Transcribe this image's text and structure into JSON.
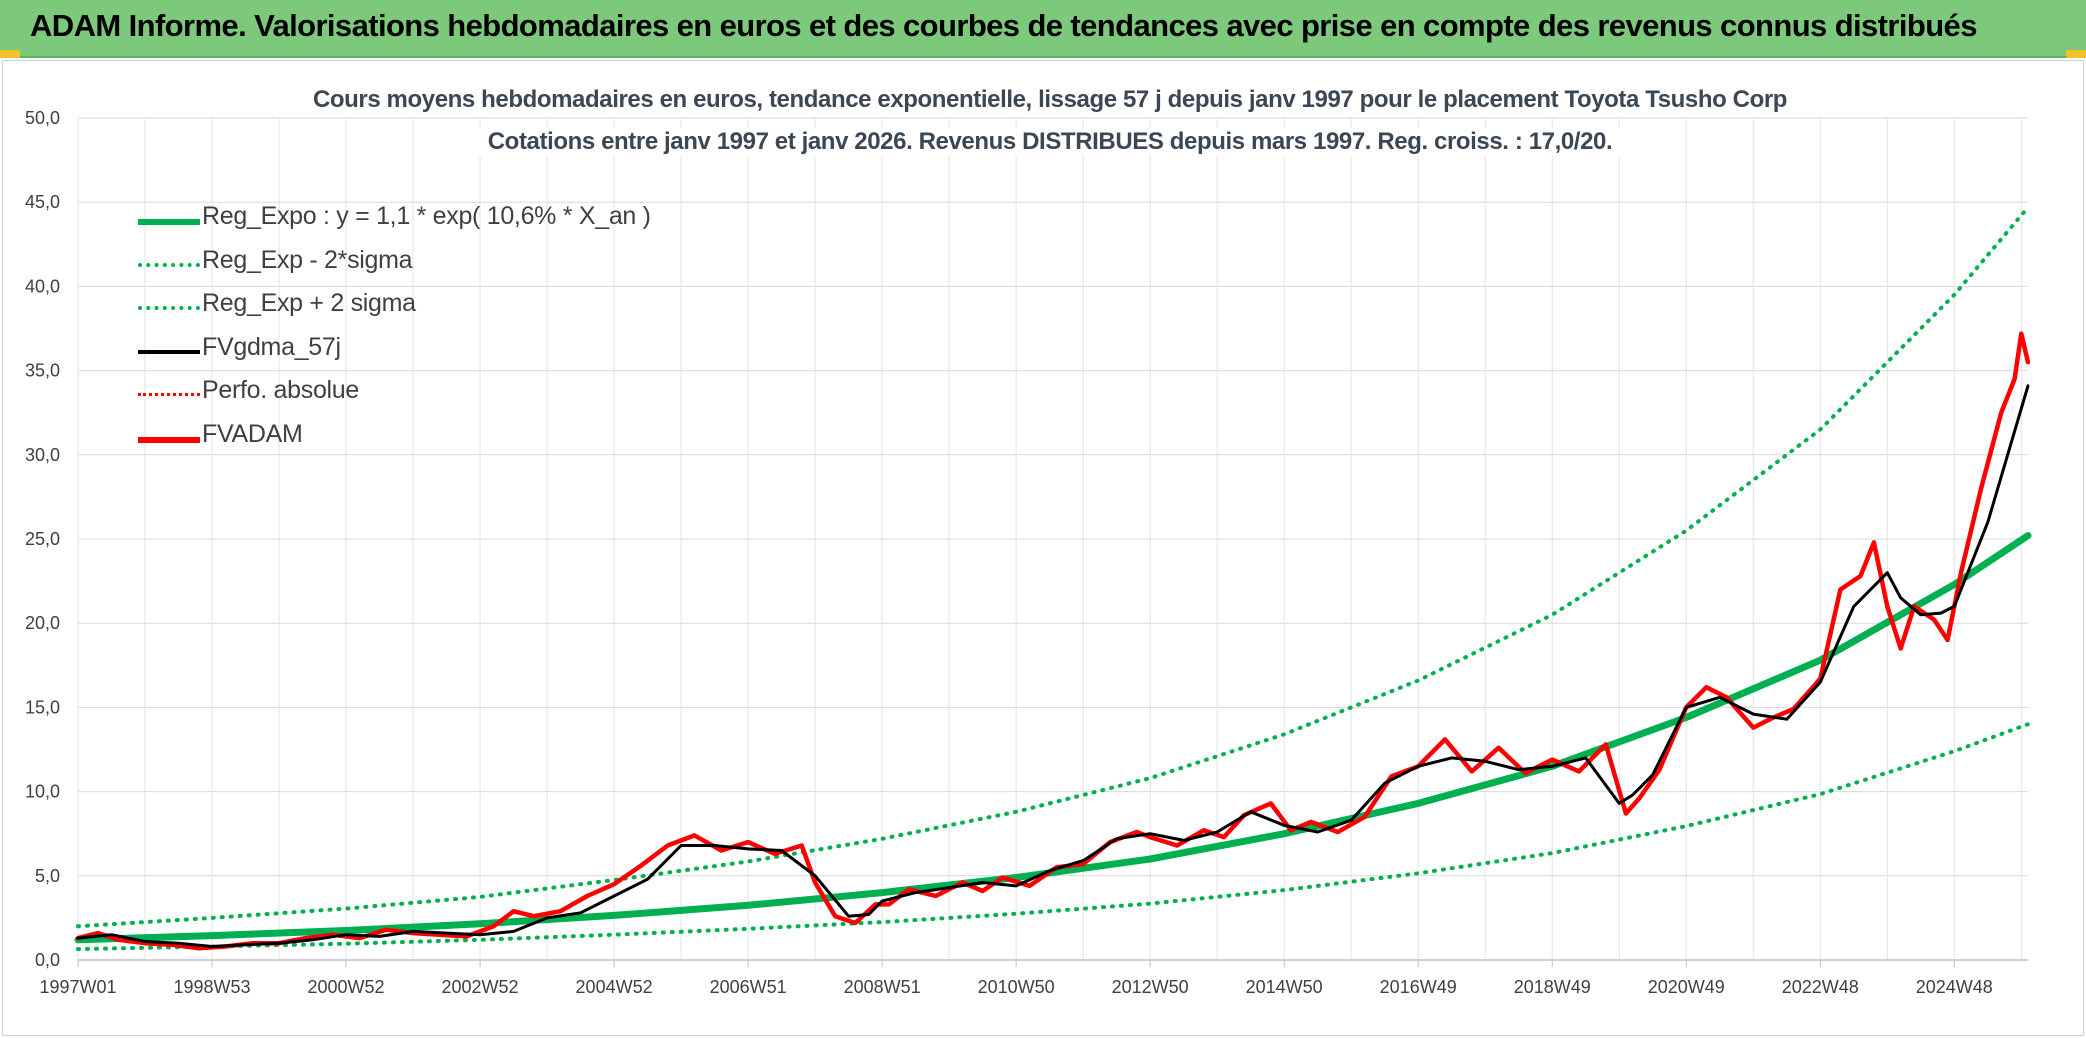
{
  "banner": {
    "title": "ADAM Informe. Valorisations hebdomadaires en euros et des courbes de tendances avec prise en compte des revenus connus distribués"
  },
  "colors": {
    "banner_bg": "#7dc97b",
    "reg_expo": "#00b050",
    "fvgdma": "#000000",
    "fvadam": "#ff0000",
    "perfo": "#ff0000"
  },
  "chart_data": {
    "type": "line",
    "title": "Cours moyens hebdomadaires en euros, tendance exponentielle, lissage 57 j depuis janv 1997 pour le placement Toyota Tsusho Corp",
    "subtitle": "Cotations entre janv 1997 et janv 2026. Revenus DISTRIBUES depuis mars 1997. Reg. croiss. : 17,0/20.",
    "xlabel": "",
    "ylabel": "",
    "x_ticks": [
      "1997W01",
      "1998W53",
      "2000W52",
      "2002W52",
      "2004W52",
      "2006W51",
      "2008W51",
      "2010W50",
      "2012W50",
      "2014W50",
      "2016W49",
      "2018W49",
      "2020W49",
      "2022W48",
      "2024W48"
    ],
    "x_range": [
      1997.0,
      2026.1
    ],
    "ylim": [
      0,
      50
    ],
    "y_ticks": [
      "0,0",
      "5,0",
      "10,0",
      "15,0",
      "20,0",
      "25,0",
      "30,0",
      "35,0",
      "40,0",
      "45,0",
      "50,0"
    ],
    "grid": true,
    "legend_position": "top-left",
    "legend": [
      {
        "label": "Reg_Expo : y = 1,1 * exp( 10,6% *  X_an )",
        "color": "#00b050",
        "style": "solid",
        "width": 6
      },
      {
        "label": "Reg_Exp - 2*sigma",
        "color": "#00b050",
        "style": "dotted",
        "width": 3.5
      },
      {
        "label": "Reg_Exp + 2 sigma",
        "color": "#00b050",
        "style": "dotted",
        "width": 3.5
      },
      {
        "label": "FVgdma_57j",
        "color": "#000000",
        "style": "solid",
        "width": 3
      },
      {
        "label": "Perfo. absolue",
        "color": "#ff0000",
        "style": "dotted",
        "width": 2
      },
      {
        "label": "FVADAM",
        "color": "#ff0000",
        "style": "solid",
        "width": 5
      }
    ],
    "series": [
      {
        "name": "Reg_Expo : y = 1,1 * exp( 10,6% *  X_an )",
        "x": [
          1997.0,
          1999.0,
          2001.0,
          2003.0,
          2005.0,
          2007.0,
          2009.0,
          2011.0,
          2013.0,
          2015.0,
          2017.0,
          2019.0,
          2021.0,
          2023.0,
          2025.0,
          2026.1
        ],
        "y": [
          1.2,
          1.45,
          1.75,
          2.15,
          2.65,
          3.25,
          4.0,
          4.9,
          6.0,
          7.5,
          9.3,
          11.5,
          14.4,
          17.8,
          22.3,
          25.2
        ]
      },
      {
        "name": "Reg_Exp - 2*sigma",
        "x": [
          1997.0,
          1999.0,
          2001.0,
          2003.0,
          2005.0,
          2007.0,
          2009.0,
          2011.0,
          2013.0,
          2015.0,
          2017.0,
          2019.0,
          2021.0,
          2023.0,
          2025.0,
          2026.1
        ],
        "y": [
          0.65,
          0.8,
          0.97,
          1.2,
          1.5,
          1.85,
          2.25,
          2.75,
          3.35,
          4.15,
          5.15,
          6.35,
          7.95,
          9.85,
          12.4,
          14.0
        ]
      },
      {
        "name": "Reg_Exp + 2 sigma",
        "x": [
          1997.0,
          1999.0,
          2001.0,
          2003.0,
          2005.0,
          2007.0,
          2009.0,
          2011.0,
          2013.0,
          2015.0,
          2017.0,
          2019.0,
          2021.0,
          2023.0,
          2025.0,
          2026.1
        ],
        "y": [
          2.0,
          2.5,
          3.05,
          3.75,
          4.75,
          5.85,
          7.2,
          8.8,
          10.8,
          13.4,
          16.6,
          20.5,
          25.5,
          31.5,
          39.5,
          44.7
        ]
      },
      {
        "name": "FVgdma_57j",
        "x": [
          1997.0,
          1997.5,
          1998.0,
          1998.5,
          1999.0,
          1999.5,
          2000.0,
          2000.5,
          2001.0,
          2001.5,
          2002.0,
          2002.5,
          2003.0,
          2003.5,
          2004.0,
          2004.5,
          2005.0,
          2005.5,
          2006.0,
          2006.5,
          2007.0,
          2007.5,
          2008.0,
          2008.5,
          2008.8,
          2009.0,
          2009.5,
          2010.0,
          2010.5,
          2011.0,
          2011.5,
          2012.0,
          2012.5,
          2013.0,
          2013.5,
          2014.0,
          2014.5,
          2015.0,
          2015.5,
          2016.0,
          2016.5,
          2017.0,
          2017.5,
          2018.0,
          2018.5,
          2019.0,
          2019.5,
          2020.0,
          2020.2,
          2020.5,
          2021.0,
          2021.5,
          2022.0,
          2022.5,
          2023.0,
          2023.5,
          2024.0,
          2024.2,
          2024.5,
          2024.8,
          2025.0,
          2025.5,
          2026.1
        ],
        "y": [
          1.3,
          1.5,
          1.1,
          1.0,
          0.8,
          0.9,
          1.0,
          1.2,
          1.5,
          1.4,
          1.7,
          1.6,
          1.5,
          1.7,
          2.5,
          2.8,
          3.8,
          4.8,
          6.8,
          6.8,
          6.6,
          6.5,
          5.0,
          2.6,
          2.7,
          3.5,
          4.0,
          4.3,
          4.6,
          4.4,
          5.3,
          5.9,
          7.2,
          7.5,
          7.1,
          7.6,
          8.8,
          8.0,
          7.6,
          8.3,
          10.5,
          11.5,
          12.0,
          11.8,
          11.3,
          11.5,
          12.0,
          9.3,
          9.8,
          11.0,
          15.0,
          15.6,
          14.6,
          14.3,
          16.5,
          21.0,
          23.0,
          21.5,
          20.5,
          20.6,
          21.0,
          26.0,
          34.1
        ]
      },
      {
        "name": "FVADAM",
        "x": [
          1997.0,
          1997.3,
          1997.6,
          1998.0,
          1998.4,
          1998.8,
          1999.2,
          1999.6,
          2000.0,
          2000.4,
          2000.8,
          2001.2,
          2001.6,
          2002.0,
          2002.4,
          2002.8,
          2003.2,
          2003.5,
          2003.8,
          2004.2,
          2004.6,
          2005.0,
          2005.4,
          2005.8,
          2006.2,
          2006.6,
          2007.0,
          2007.4,
          2007.8,
          2008.0,
          2008.3,
          2008.6,
          2008.9,
          2009.1,
          2009.4,
          2009.8,
          2010.2,
          2010.5,
          2010.8,
          2011.2,
          2011.6,
          2012.0,
          2012.4,
          2012.8,
          2013.0,
          2013.4,
          2013.8,
          2014.1,
          2014.4,
          2014.8,
          2015.1,
          2015.4,
          2015.8,
          2016.2,
          2016.6,
          2017.0,
          2017.4,
          2017.8,
          2018.2,
          2018.6,
          2019.0,
          2019.4,
          2019.8,
          2020.1,
          2020.3,
          2020.6,
          2021.0,
          2021.3,
          2021.6,
          2022.0,
          2022.3,
          2022.6,
          2023.0,
          2023.3,
          2023.6,
          2023.8,
          2024.0,
          2024.2,
          2024.4,
          2024.7,
          2024.9,
          2025.1,
          2025.4,
          2025.7,
          2025.9,
          2026.0,
          2026.1
        ],
        "y": [
          1.3,
          1.6,
          1.2,
          1.0,
          0.9,
          0.7,
          0.8,
          1.0,
          1.0,
          1.3,
          1.5,
          1.3,
          1.8,
          1.6,
          1.5,
          1.4,
          2.0,
          2.9,
          2.6,
          2.9,
          3.8,
          4.5,
          5.6,
          6.8,
          7.4,
          6.5,
          7.0,
          6.3,
          6.8,
          4.6,
          2.6,
          2.2,
          3.3,
          3.3,
          4.2,
          3.8,
          4.6,
          4.1,
          4.9,
          4.4,
          5.5,
          5.7,
          7.0,
          7.6,
          7.3,
          6.8,
          7.7,
          7.3,
          8.6,
          9.3,
          7.7,
          8.2,
          7.6,
          8.5,
          10.9,
          11.5,
          13.1,
          11.2,
          12.6,
          11.1,
          11.9,
          11.2,
          12.8,
          8.7,
          9.6,
          11.3,
          15.0,
          16.2,
          15.6,
          13.8,
          14.4,
          14.9,
          16.7,
          22.0,
          22.8,
          24.8,
          21.0,
          18.5,
          21.0,
          20.2,
          19.0,
          23.0,
          28.0,
          32.5,
          34.5,
          37.2,
          35.5
        ]
      }
    ]
  }
}
